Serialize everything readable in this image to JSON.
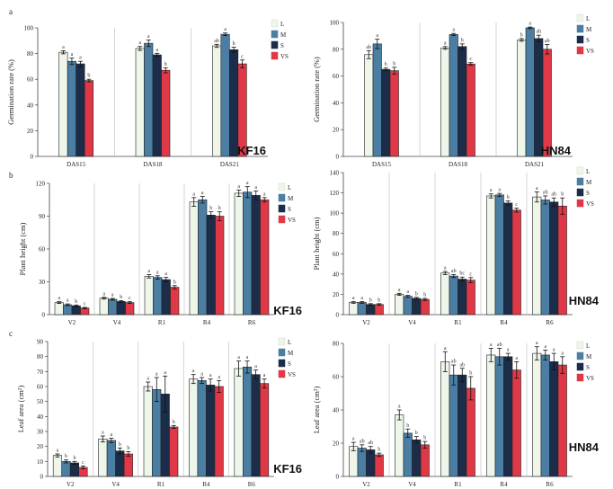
{
  "panel_labels": [
    "a",
    "b",
    "c"
  ],
  "legend": [
    {
      "name": "L",
      "color": "#eef6ea"
    },
    {
      "name": "M",
      "color": "#4a7ea3"
    },
    {
      "name": "S",
      "color": "#1c2d4a"
    },
    {
      "name": "VS",
      "color": "#e03846"
    }
  ],
  "chart_data": [
    {
      "type": "bar",
      "panel": "a",
      "variety": "KF16",
      "ylabel": "Germination rate (%)",
      "ylim": [
        0,
        100
      ],
      "yticks": [
        "0",
        "20",
        "40",
        "60",
        "80",
        "100"
      ],
      "categories": [
        "DAS15",
        "DAS18",
        "DAS21"
      ],
      "series": [
        {
          "name": "L",
          "values": [
            81,
            84,
            86
          ],
          "err": [
            1.2,
            1.5,
            1.2
          ],
          "sig": [
            "a",
            "a",
            "ab"
          ]
        },
        {
          "name": "M",
          "values": [
            74,
            88,
            95
          ],
          "err": [
            2.5,
            2.5,
            1.0
          ],
          "sig": [
            "a",
            "a",
            "a"
          ]
        },
        {
          "name": "S",
          "values": [
            72,
            79,
            83
          ],
          "err": [
            2.0,
            1.2,
            2.0
          ],
          "sig": [
            "a",
            "a",
            "b"
          ]
        },
        {
          "name": "VS",
          "values": [
            59,
            67,
            72
          ],
          "err": [
            1.0,
            2.0,
            3.0
          ],
          "sig": [
            "b",
            "b",
            "c"
          ]
        }
      ]
    },
    {
      "type": "bar",
      "panel": "a",
      "variety": "HN84",
      "ylabel": "Germination rate (%)",
      "ylim": [
        0,
        100
      ],
      "yticks": [
        "0",
        "20",
        "40",
        "60",
        "80",
        "100"
      ],
      "categories": [
        "DAS15",
        "DAS18",
        "DAS21"
      ],
      "series": [
        {
          "name": "L",
          "values": [
            76,
            81,
            87
          ],
          "err": [
            3.0,
            1.0,
            1.0
          ],
          "sig": [
            "ab",
            "a",
            "b"
          ]
        },
        {
          "name": "M",
          "values": [
            84,
            91,
            96
          ],
          "err": [
            3.5,
            0.8,
            0.6
          ],
          "sig": [
            "a",
            "a",
            "a"
          ]
        },
        {
          "name": "S",
          "values": [
            65,
            82,
            88
          ],
          "err": [
            1.0,
            2.0,
            2.5
          ],
          "sig": [
            "b",
            "b",
            "ab"
          ]
        },
        {
          "name": "VS",
          "values": [
            64,
            69,
            80
          ],
          "err": [
            2.5,
            1.0,
            3.5
          ],
          "sig": [
            "b",
            "c",
            "ab"
          ]
        }
      ]
    },
    {
      "type": "bar",
      "panel": "b",
      "variety": "KF16",
      "ylabel": "Plant height (cm)",
      "ylim": [
        0,
        120
      ],
      "yticks": [
        "0",
        "30",
        "60",
        "90",
        "120"
      ],
      "categories": [
        "V2",
        "V4",
        "R1",
        "R4",
        "R6"
      ],
      "series": [
        {
          "name": "L",
          "values": [
            11,
            15,
            35,
            103,
            111
          ],
          "err": [
            0.8,
            0.8,
            1.5,
            4,
            3
          ],
          "sig": [
            "a",
            "a",
            "a",
            "a",
            "a"
          ]
        },
        {
          "name": "M",
          "values": [
            9,
            14,
            34,
            105,
            112
          ],
          "err": [
            0.8,
            0.8,
            1.5,
            3,
            5
          ],
          "sig": [
            "a",
            "a",
            "a",
            "a",
            "a"
          ]
        },
        {
          "name": "S",
          "values": [
            8,
            12,
            32,
            91,
            109
          ],
          "err": [
            0.8,
            0.8,
            2,
            3,
            4
          ],
          "sig": [
            "b",
            "b",
            "a",
            "b",
            "a"
          ]
        },
        {
          "name": "VS",
          "values": [
            6,
            11,
            25,
            90,
            105
          ],
          "err": [
            0.6,
            0.8,
            1.5,
            4,
            2
          ],
          "sig": [
            "c",
            "c",
            "b",
            "b",
            "a"
          ]
        }
      ]
    },
    {
      "type": "bar",
      "panel": "b",
      "variety": "HN84",
      "ylabel": "Plant height (cm)",
      "ylim": [
        0,
        140
      ],
      "yticks": [
        "0",
        "20",
        "40",
        "60",
        "80",
        "100",
        "120",
        "140"
      ],
      "categories": [
        "V2",
        "V4",
        "R1",
        "R4",
        "R6"
      ],
      "series": [
        {
          "name": "L",
          "values": [
            12,
            20,
            41,
            117,
            116
          ],
          "err": [
            0.8,
            1,
            1.5,
            2,
            5
          ],
          "sig": [
            "a",
            "a",
            "a",
            "a",
            "a"
          ]
        },
        {
          "name": "M",
          "values": [
            12,
            18,
            38,
            118,
            113
          ],
          "err": [
            0.8,
            1,
            1.5,
            1.5,
            4
          ],
          "sig": [
            "a",
            "a",
            "ab",
            "a",
            "ab"
          ]
        },
        {
          "name": "S",
          "values": [
            10,
            16,
            35,
            110,
            111
          ],
          "err": [
            0.8,
            1,
            2,
            2,
            4
          ],
          "sig": [
            "b",
            "b",
            "bc",
            "b",
            "ab"
          ]
        },
        {
          "name": "VS",
          "values": [
            10,
            15,
            34,
            103,
            107
          ],
          "err": [
            0.8,
            1,
            2.5,
            2,
            8
          ],
          "sig": [
            "b",
            "b",
            "c",
            "c",
            "b"
          ]
        }
      ]
    },
    {
      "type": "bar",
      "panel": "c",
      "variety": "KF16",
      "ylabel": "Leaf area (cm²)",
      "ylim": [
        0,
        90
      ],
      "yticks": [
        "0",
        "10",
        "20",
        "30",
        "40",
        "50",
        "60",
        "70",
        "80",
        "90"
      ],
      "categories": [
        "V2",
        "V4",
        "R1",
        "R4",
        "R6"
      ],
      "series": [
        {
          "name": "L",
          "values": [
            14,
            25,
            60,
            65,
            72
          ],
          "err": [
            1,
            2,
            3,
            3,
            5
          ],
          "sig": [
            "a",
            "a",
            "a",
            "a",
            "a"
          ]
        },
        {
          "name": "M",
          "values": [
            10,
            24,
            58,
            64,
            73
          ],
          "err": [
            1,
            1.5,
            8,
            2,
            4
          ],
          "sig": [
            "b",
            "a",
            "a",
            "a",
            "a"
          ]
        },
        {
          "name": "S",
          "values": [
            9,
            17,
            55,
            61,
            68
          ],
          "err": [
            1,
            2,
            12,
            4,
            3
          ],
          "sig": [
            "b",
            "b",
            "a",
            "a",
            "a"
          ]
        },
        {
          "name": "VS",
          "values": [
            6,
            15,
            33,
            60,
            62
          ],
          "err": [
            1,
            1.5,
            1,
            4,
            3
          ],
          "sig": [
            "c",
            "b",
            "b",
            "a",
            "a"
          ]
        }
      ]
    },
    {
      "type": "bar",
      "panel": "c",
      "variety": "HN84",
      "ylabel": "Leaf area (cm²)",
      "ylim": [
        0,
        80
      ],
      "yticks": [
        "0",
        "20",
        "40",
        "60",
        "80"
      ],
      "categories": [
        "V2",
        "V4",
        "R1",
        "R4",
        "R6"
      ],
      "series": [
        {
          "name": "L",
          "values": [
            18,
            37,
            69,
            73,
            74
          ],
          "err": [
            2.5,
            3,
            6,
            4,
            4
          ],
          "sig": [
            "a",
            "a",
            "a",
            "a",
            "a"
          ]
        },
        {
          "name": "M",
          "values": [
            17,
            26,
            61,
            72,
            73
          ],
          "err": [
            2,
            2.5,
            6,
            5,
            3
          ],
          "sig": [
            "ab",
            "b",
            "ab",
            "ab",
            "a"
          ]
        },
        {
          "name": "S",
          "values": [
            16,
            22,
            61,
            72,
            69
          ],
          "err": [
            2,
            2,
            4,
            2,
            5
          ],
          "sig": [
            "ab",
            "b",
            "ab",
            "a",
            "a"
          ]
        },
        {
          "name": "VS",
          "values": [
            13,
            19,
            53,
            64,
            67
          ],
          "err": [
            1,
            2,
            7,
            5,
            5
          ],
          "sig": [
            "b",
            "b",
            "b",
            "a",
            "a"
          ]
        }
      ]
    }
  ]
}
